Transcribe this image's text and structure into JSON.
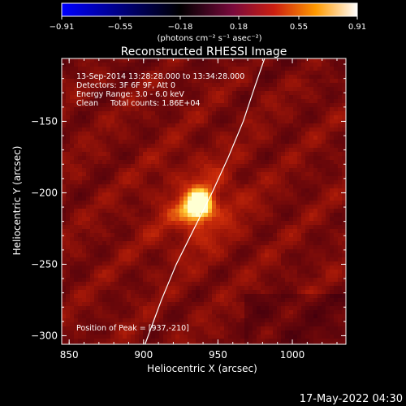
{
  "chart_data": {
    "type": "heatmap",
    "title": "Reconstructed RHESSI Image",
    "xlabel": "Heliocentric X (arcsec)",
    "ylabel": "Heliocentric Y (arcsec)",
    "xlim": [
      845,
      1036
    ],
    "ylim": [
      -306,
      -106
    ],
    "x_ticks": [
      {
        "value": 850,
        "label": "850"
      },
      {
        "value": 900,
        "label": "900"
      },
      {
        "value": 950,
        "label": "950"
      },
      {
        "value": 1000,
        "label": "1000"
      }
    ],
    "y_ticks": [
      {
        "value": -150,
        "label": "−150"
      },
      {
        "value": -200,
        "label": "−200"
      },
      {
        "value": -250,
        "label": "−250"
      },
      {
        "value": -300,
        "label": "−300"
      }
    ],
    "colorbar": {
      "min": -0.91,
      "max": 0.91,
      "ticks": [
        {
          "value": -0.91,
          "label": "−0.91"
        },
        {
          "value": -0.55,
          "label": "−0.55"
        },
        {
          "value": -0.18,
          "label": "−0.18"
        },
        {
          "value": 0.18,
          "label": "0.18"
        },
        {
          "value": 0.55,
          "label": "0.55"
        },
        {
          "value": 0.91,
          "label": "0.91"
        }
      ],
      "unit_label": "(photons cm⁻² s⁻¹ asec⁻²)",
      "colors": [
        "#0000ff",
        "#000000",
        "#7a0a3c",
        "#cc1f10",
        "#ff9a00",
        "#ffffff"
      ]
    },
    "info_lines": [
      "13-Sep-2014 13:28:28.000 to 13:34:28.000",
      "Detectors: 3F 6F 9F, Att 0",
      "Energy Range: 3.0 - 6.0 keV",
      "Clean     Total counts: 1.86E+04"
    ],
    "peak_label": "Position of Peak = [937,-210]",
    "peak": {
      "x": 937,
      "y": -210
    },
    "limb_curve": [
      {
        "x": 982,
        "y": -104
      },
      {
        "x": 975,
        "y": -125
      },
      {
        "x": 967,
        "y": -150
      },
      {
        "x": 957,
        "y": -175
      },
      {
        "x": 946,
        "y": -200
      },
      {
        "x": 934,
        "y": -225
      },
      {
        "x": 922,
        "y": -250
      },
      {
        "x": 912,
        "y": -275
      },
      {
        "x": 901,
        "y": -306
      }
    ]
  },
  "footer": {
    "timestamp": "17-May-2022 04:30"
  }
}
